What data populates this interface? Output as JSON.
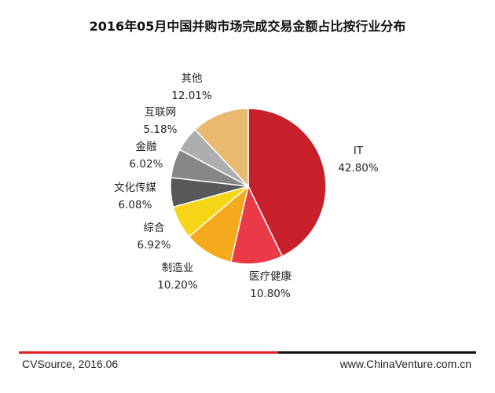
{
  "chart_data": {
    "type": "pie",
    "title": "2016年05月中国并购市场完成交易金额占比按行业分布",
    "slices": [
      {
        "label": "IT",
        "value": 42.8,
        "value_label": "42.80%",
        "color": "#c8202b"
      },
      {
        "label": "医疗健康",
        "value": 10.8,
        "value_label": "10.80%",
        "color": "#ea3a47"
      },
      {
        "label": "制造业",
        "value": 10.2,
        "value_label": "10.20%",
        "color": "#f5a91c"
      },
      {
        "label": "综合",
        "value": 6.92,
        "value_label": "6.92%",
        "color": "#f5d515"
      },
      {
        "label": "文化传媒",
        "value": 6.08,
        "value_label": "6.08%",
        "color": "#58585a"
      },
      {
        "label": "金融",
        "value": 6.02,
        "value_label": "6.02%",
        "color": "#858688"
      },
      {
        "label": "互联网",
        "value": 5.18,
        "value_label": "5.18%",
        "color": "#adaeb0"
      },
      {
        "label": "其他",
        "value": 12.01,
        "value_label": "12.01%",
        "color": "#e8b96f"
      }
    ]
  },
  "footer": {
    "source": "CVSource, 2016.06",
    "website": "www.ChinaVenture.com.cn"
  }
}
